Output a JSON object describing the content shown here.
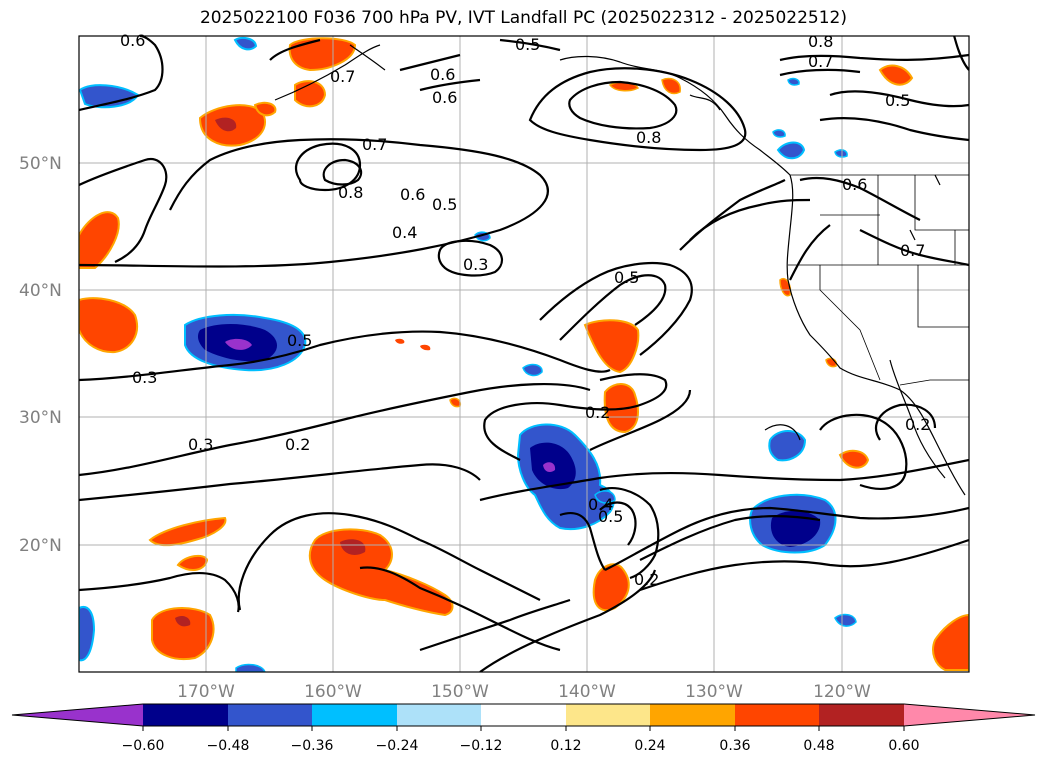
{
  "title": "2025022100 F036 700 hPa PV, IVT Landfall PC (2025022312 - 2025022512)",
  "map": {
    "projection": "PlateCarree",
    "lon_range": [
      -180,
      -110
    ],
    "lat_range": [
      10,
      60
    ],
    "gridlines": true,
    "lat_ticks": [
      "50°N",
      "40°N",
      "30°N",
      "20°N"
    ],
    "lon_ticks": [
      "170°W",
      "160°W",
      "150°W",
      "140°W",
      "130°W",
      "120°W"
    ],
    "contour_labels": [
      "0.6",
      "0.5",
      "0.7",
      "0.8",
      "0.7",
      "0.6",
      "0.6",
      "0.8",
      "0.5",
      "0.7",
      "0.8",
      "0.6",
      "0.5",
      "0.4",
      "0.6",
      "0.7",
      "0.3",
      "0.5",
      "0.5",
      "0.3",
      "0.3",
      "0.2",
      "0.2",
      "0.4",
      "0.5",
      "0.2",
      "0.2"
    ]
  },
  "colorbar": {
    "ticks": [
      "−0.60",
      "−0.48",
      "−0.36",
      "−0.24",
      "−0.12",
      "0.12",
      "0.24",
      "0.36",
      "0.48",
      "0.60"
    ],
    "colors": [
      "#9932CC",
      "#00008B",
      "#3355CC",
      "#00BFFF",
      "#ADE1F9",
      "#FFFFFF",
      "#FDE68A",
      "#FFA500",
      "#FF4500",
      "#B22222",
      "#FF88AA"
    ],
    "extend": "both"
  }
}
